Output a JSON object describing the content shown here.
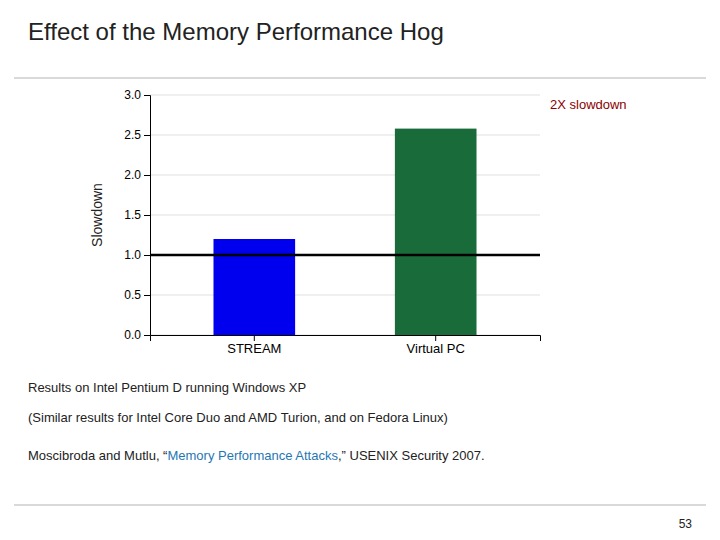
{
  "chart_data": {
    "type": "bar",
    "title": "Effect of the Memory Performance Hog",
    "categories": [
      "STREAM",
      "Virtual PC"
    ],
    "values": [
      1.2,
      2.58
    ],
    "colors": [
      "#0000ee",
      "#1a6b3a"
    ],
    "ylabel": "Slowdown",
    "ylim": [
      0,
      3
    ],
    "yticks": [
      {
        "value": 0,
        "label": "0.0"
      },
      0.5,
      {
        "value": 1,
        "label": "1.0"
      },
      1.5,
      {
        "value": 2,
        "label": "2.0"
      },
      2.5,
      {
        "value": 3,
        "label": "3.0"
      }
    ],
    "grid": true,
    "reference_line": 1,
    "annotation": "2X slowdown",
    "notes": [
      "Results on Intel Pentium D running Windows XP",
      "(Similar results for Intel Core Duo and AMD Turion, and on Fedora Linux)"
    ],
    "citation": [
      "Moscibroda and Mutlu, “",
      "Memory Performance Attacks",
      ",” USENIX Security 2007."
    ],
    "page_number": "53"
  }
}
